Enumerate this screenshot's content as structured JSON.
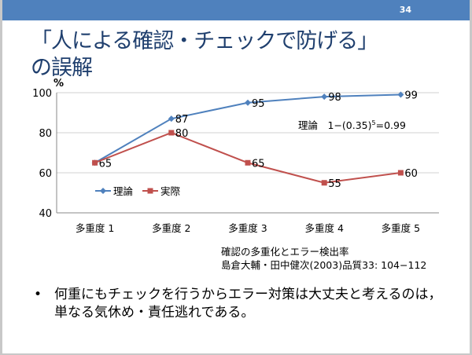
{
  "page_number": "34",
  "title": {
    "line1": "「人による確認・チェックで防げる」",
    "line2": "の誤解"
  },
  "chart_data": {
    "type": "line",
    "ylabel": "%",
    "categories": [
      "多重度 1",
      "多重度 2",
      "多重度 3",
      "多重度 4",
      "多重度 5"
    ],
    "ylim": [
      40,
      100
    ],
    "yticks": [
      40,
      60,
      80,
      100
    ],
    "grid": true,
    "legend_position": "left-middle",
    "series": [
      {
        "name": "理論",
        "color": "#4f81bd",
        "marker": "diamond",
        "values": [
          65,
          87,
          95,
          98,
          99
        ]
      },
      {
        "name": "実際",
        "color": "#c0504d",
        "marker": "square",
        "values": [
          65,
          80,
          65,
          55,
          60
        ]
      }
    ],
    "annotation": {
      "text": "理論　1−(0.35)",
      "sup": "5",
      "tail": "=0.99"
    }
  },
  "source": {
    "line1": "確認の多重化とエラー検出率",
    "line2": "島倉大輔・田中健次(2003)品質33: 104−112"
  },
  "bullet": {
    "marker": "•",
    "text": "何重にもチェックを行うからエラー対策は大丈夫と考えるのは，単なる気休め・責任逃れである。"
  }
}
